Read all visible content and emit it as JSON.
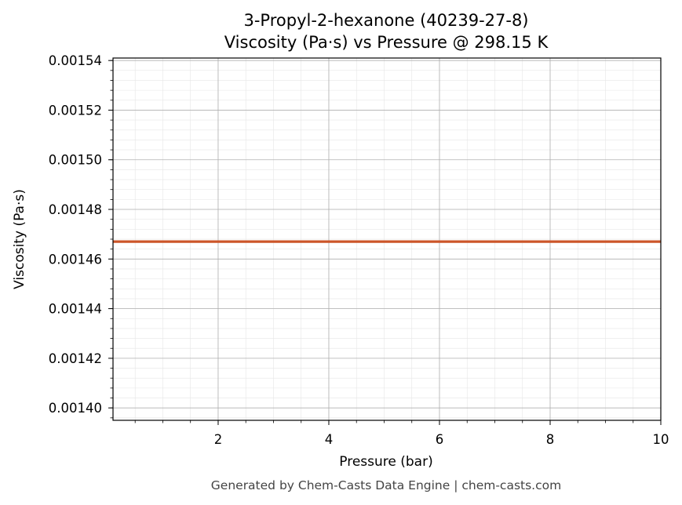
{
  "chart_data": {
    "type": "line",
    "title": "3-Propyl-2-hexanone (40239-27-8)",
    "subtitle": "Viscosity (Pa·s) vs Pressure @ 298.15 K",
    "xlabel": "Pressure (bar)",
    "ylabel": "Viscosity (Pa·s)",
    "xlim": [
      0.1,
      10
    ],
    "ylim": [
      0.001395,
      0.001541
    ],
    "x_ticks": [
      2,
      4,
      6,
      8,
      10
    ],
    "x_tick_labels": [
      "2",
      "4",
      "6",
      "8",
      "10"
    ],
    "y_ticks": [
      0.0014,
      0.00142,
      0.00144,
      0.00146,
      0.00148,
      0.0015,
      0.00152,
      0.00154
    ],
    "y_tick_labels": [
      "0.00140",
      "0.00142",
      "0.00144",
      "0.00146",
      "0.00148",
      "0.00150",
      "0.00152",
      "0.00154"
    ],
    "grid": true,
    "series": [
      {
        "color": "#cc5529",
        "x": [
          0.1,
          1,
          2,
          3,
          4,
          5,
          6,
          7,
          8,
          9,
          10
        ],
        "y": [
          0.001467,
          0.001467,
          0.001467,
          0.001467,
          0.001467,
          0.001467,
          0.001467,
          0.001467,
          0.001467,
          0.001467,
          0.001467
        ]
      }
    ]
  },
  "footer": "Generated by Chem-Casts Data Engine | chem-casts.com"
}
